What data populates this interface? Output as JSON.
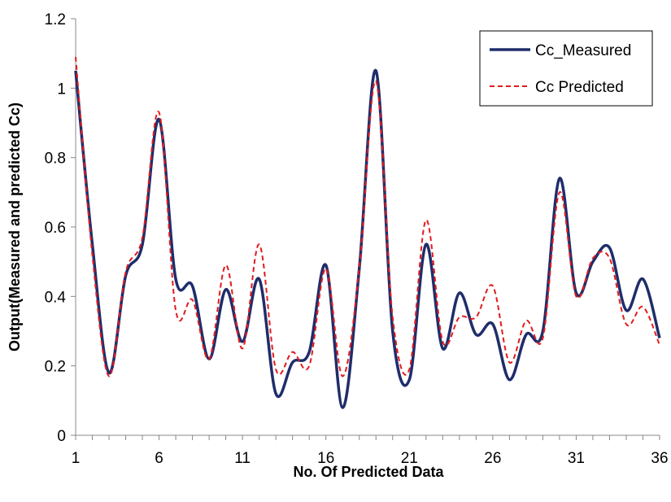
{
  "chart_data": {
    "type": "line",
    "title": "",
    "xlabel": "No. Of  Predicted Data",
    "ylabel": "Output(Measured and predicted Cc)",
    "xlim": [
      1,
      36
    ],
    "ylim": [
      0,
      1.2
    ],
    "x_ticks": [
      "1",
      "6",
      "11",
      "16",
      "21",
      "26",
      "31",
      "36"
    ],
    "y_ticks": [
      "0",
      "0.2",
      "0.4",
      "0.6",
      "0.8",
      "1",
      "1.2"
    ],
    "grid": false,
    "legend_position": "top-right",
    "x": [
      1,
      2,
      3,
      4,
      5,
      6,
      7,
      8,
      9,
      10,
      11,
      12,
      13,
      14,
      15,
      16,
      17,
      18,
      19,
      20,
      21,
      22,
      23,
      24,
      25,
      26,
      27,
      28,
      29,
      30,
      31,
      32,
      33,
      34,
      35,
      36
    ],
    "series": [
      {
        "name": "Cc_Measured",
        "color": "#1f2d6b",
        "dash": "solid",
        "values": [
          1.05,
          0.55,
          0.18,
          0.46,
          0.55,
          0.91,
          0.45,
          0.43,
          0.22,
          0.42,
          0.27,
          0.45,
          0.12,
          0.21,
          0.24,
          0.49,
          0.08,
          0.48,
          1.05,
          0.3,
          0.16,
          0.55,
          0.25,
          0.41,
          0.29,
          0.32,
          0.16,
          0.29,
          0.3,
          0.74,
          0.41,
          0.5,
          0.54,
          0.36,
          0.45,
          0.28
        ]
      },
      {
        "name": "Cc Predicted",
        "color": "#e31a1c",
        "dash": "dashed",
        "values": [
          1.09,
          0.52,
          0.17,
          0.47,
          0.57,
          0.93,
          0.36,
          0.39,
          0.22,
          0.49,
          0.25,
          0.55,
          0.19,
          0.24,
          0.2,
          0.48,
          0.17,
          0.48,
          1.02,
          0.34,
          0.19,
          0.62,
          0.27,
          0.34,
          0.34,
          0.43,
          0.21,
          0.33,
          0.28,
          0.7,
          0.4,
          0.51,
          0.51,
          0.32,
          0.37,
          0.26
        ]
      }
    ]
  }
}
